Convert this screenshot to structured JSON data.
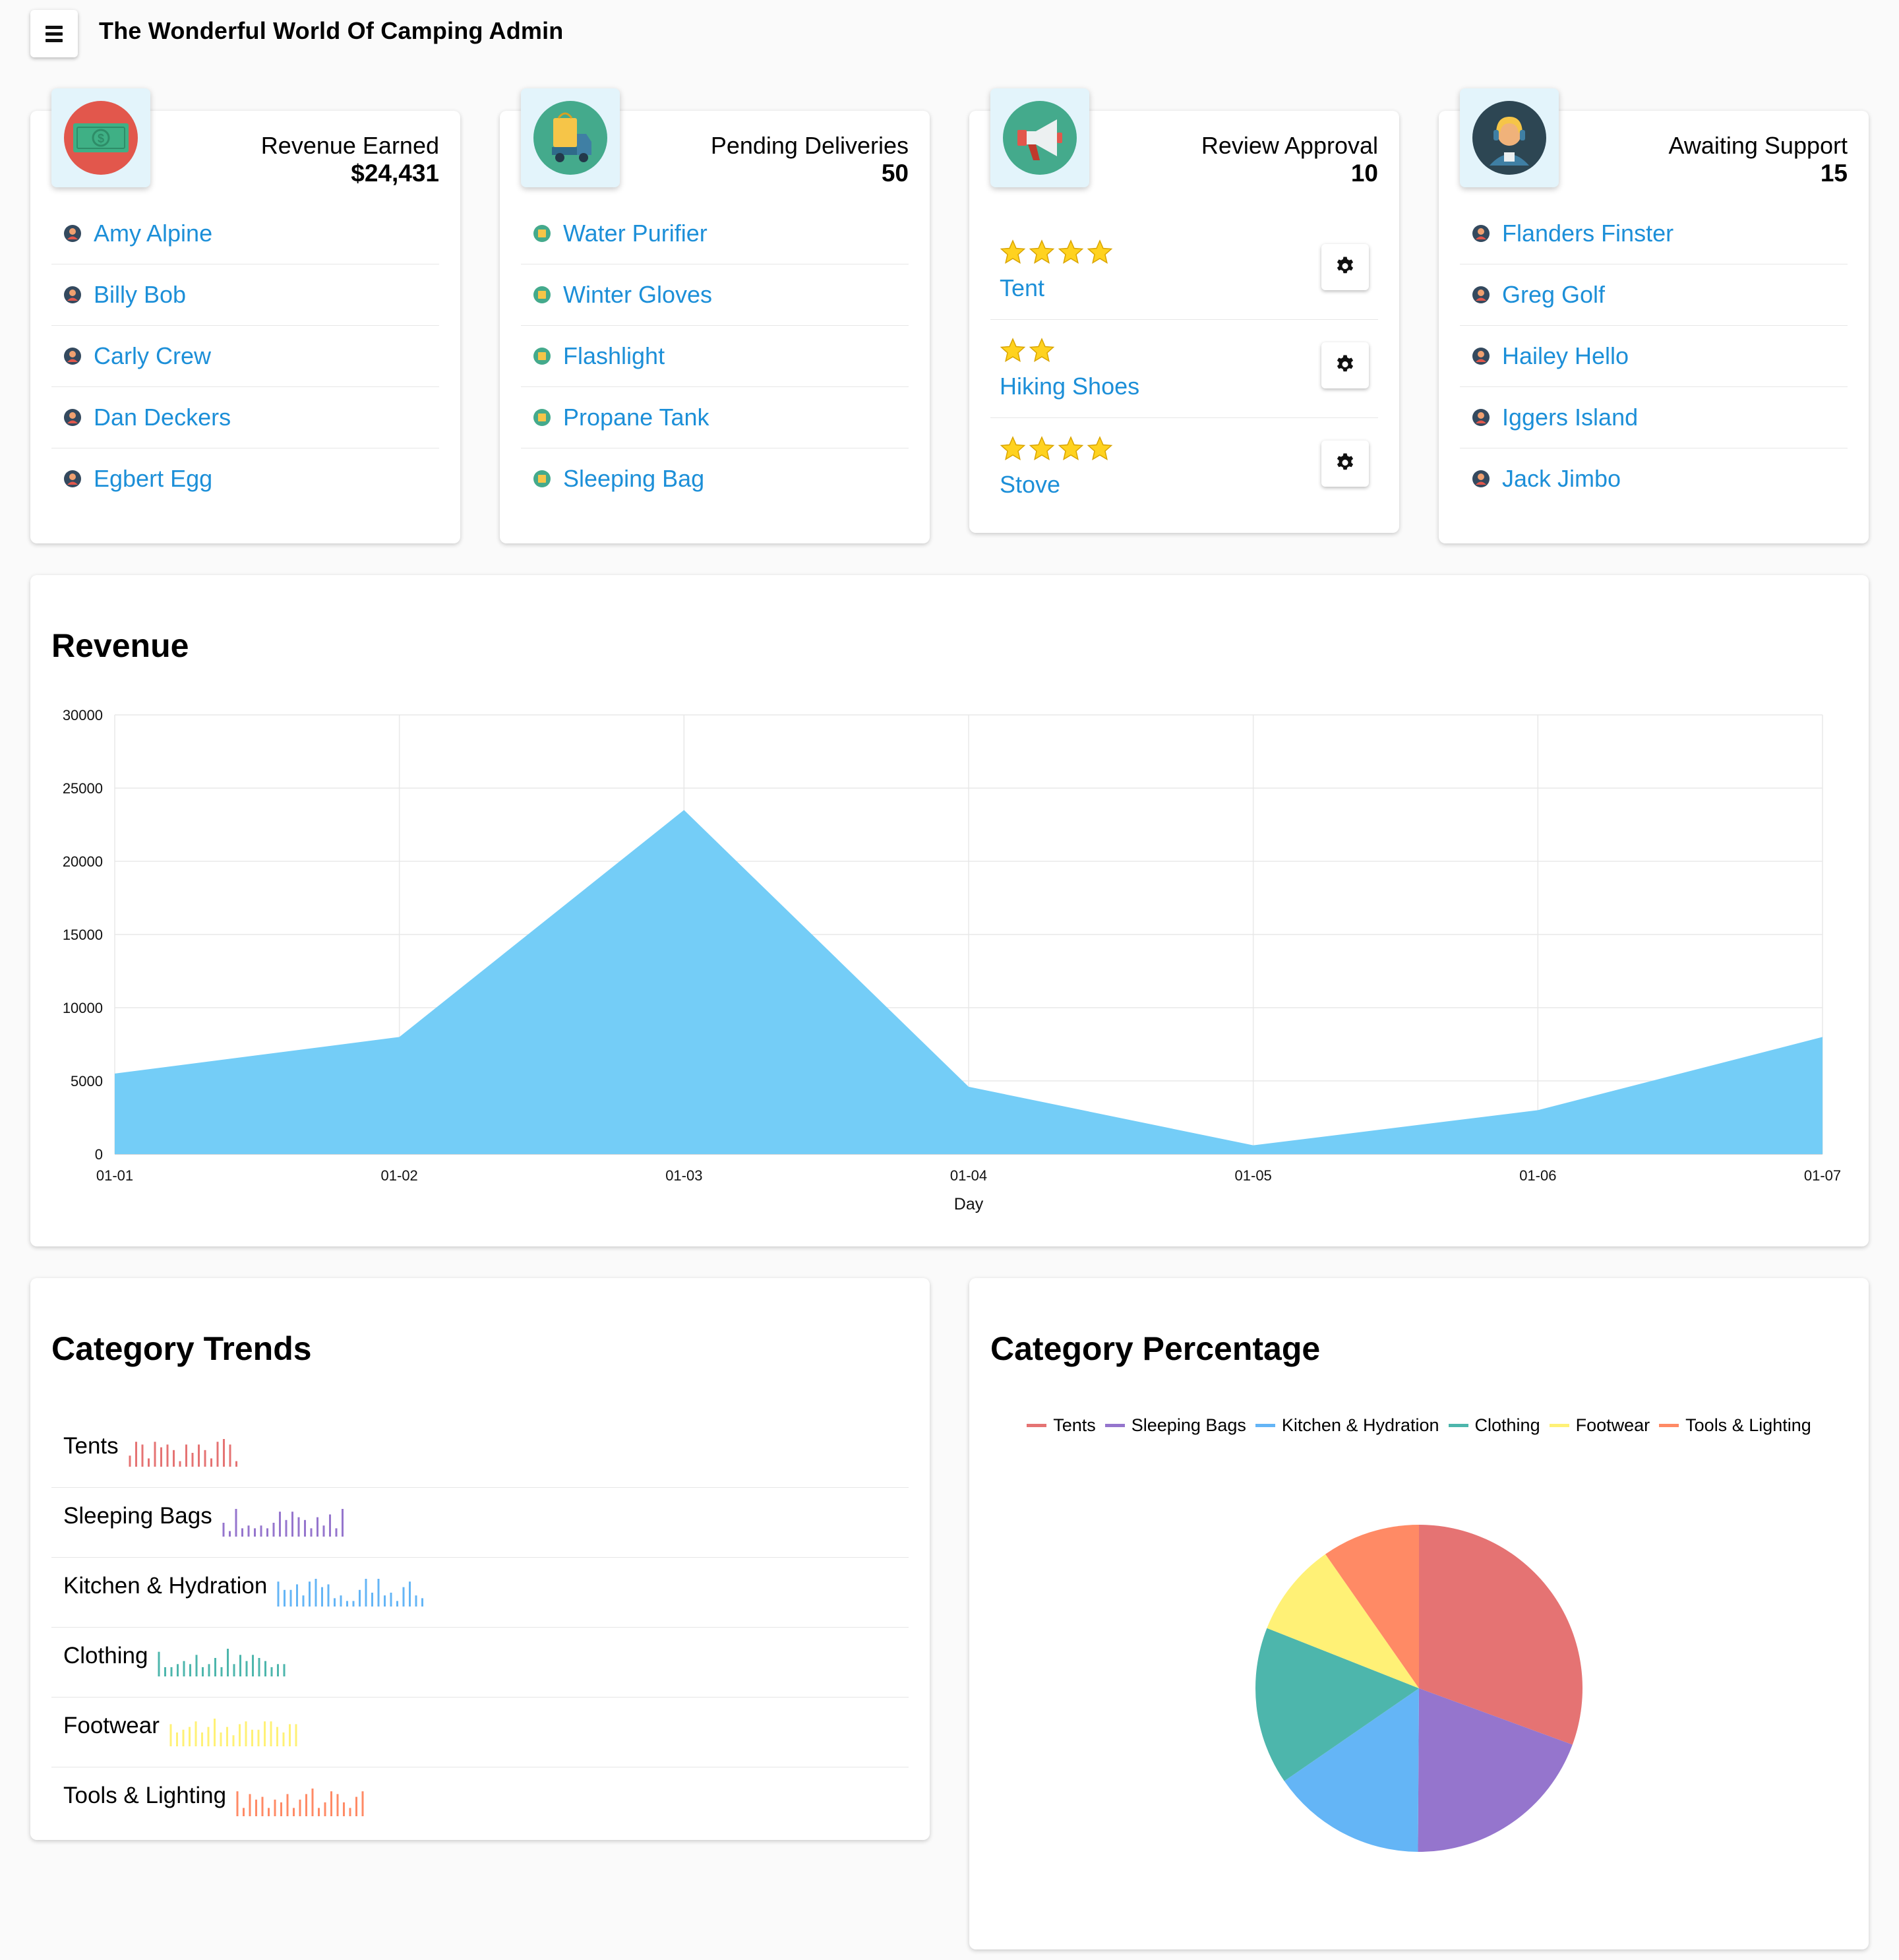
{
  "app": {
    "title": "The Wonderful World Of Camping Admin",
    "menu_icon": "hamburger-menu-icon"
  },
  "stats": [
    {
      "id": "revenue",
      "label": "Revenue Earned",
      "value": "$24,431",
      "icon": "money-icon",
      "icon_color": "#e2574c",
      "items": [
        "Amy Alpine",
        "Billy Bob",
        "Carly Crew",
        "Dan Deckers",
        "Egbert Egg"
      ]
    },
    {
      "id": "deliveries",
      "label": "Pending Deliveries",
      "value": "50",
      "icon": "delivery-truck-icon",
      "icon_color": "#44aa8c",
      "items": [
        "Water Purifier",
        "Winter Gloves",
        "Flashlight",
        "Propane Tank",
        "Sleeping Bag"
      ]
    },
    {
      "id": "reviews",
      "label": "Review Approval",
      "value": "10",
      "icon": "megaphone-icon",
      "icon_color": "#44aa8c",
      "reviews": [
        {
          "name": "Tent",
          "stars": 4
        },
        {
          "name": "Hiking Shoes",
          "stars": 2
        },
        {
          "name": "Stove",
          "stars": 4
        }
      ]
    },
    {
      "id": "support",
      "label": "Awaiting Support",
      "value": "15",
      "icon": "support-agent-icon",
      "icon_color": "#2d4653",
      "items": [
        "Flanders Finster",
        "Greg Golf",
        "Hailey Hello",
        "Iggers Island",
        "Jack Jimbo"
      ]
    }
  ],
  "revenue": {
    "title": "Revenue",
    "chart_data": {
      "type": "area",
      "x": [
        "01-01",
        "01-02",
        "01-03",
        "01-04",
        "01-05",
        "01-06",
        "01-07"
      ],
      "values": [
        5500,
        8000,
        23500,
        4600,
        600,
        3000,
        8000
      ],
      "xlabel": "Day",
      "ylabel": "",
      "ylim": [
        0,
        30000
      ],
      "yticks": [
        0,
        5000,
        10000,
        15000,
        20000,
        25000,
        30000
      ],
      "grid": true,
      "color": "#74cdf7"
    }
  },
  "trends": {
    "title": "Category Trends",
    "items": [
      {
        "name": "Tents",
        "color": "#e57373",
        "values": [
          4,
          9,
          8,
          3,
          9,
          7,
          8,
          6,
          2,
          8,
          5,
          8,
          6,
          3,
          9,
          10,
          8,
          2
        ]
      },
      {
        "name": "Sleeping Bags",
        "color": "#9575cd",
        "values": [
          5,
          2,
          10,
          3,
          4,
          3,
          4,
          3,
          5,
          9,
          6,
          9,
          7,
          6,
          3,
          7,
          4,
          8,
          3,
          10
        ]
      },
      {
        "name": "Kitchen & Hydration",
        "color": "#64b5f6",
        "values": [
          9,
          6,
          6,
          8,
          4,
          9,
          10,
          7,
          8,
          3,
          4,
          2,
          2,
          6,
          10,
          5,
          10,
          4,
          5,
          2,
          7,
          9,
          4,
          3
        ]
      },
      {
        "name": "Clothing",
        "color": "#4db6ac",
        "values": [
          8,
          3,
          3,
          4,
          5,
          4,
          7,
          3,
          4,
          6,
          3,
          9,
          4,
          7,
          5,
          7,
          6,
          5,
          3,
          4,
          4
        ]
      },
      {
        "name": "Footwear",
        "color": "#fff176",
        "values": [
          8,
          5,
          6,
          7,
          9,
          5,
          7,
          10,
          5,
          7,
          4,
          8,
          9,
          6,
          6,
          9,
          9,
          7,
          5,
          8,
          8
        ]
      },
      {
        "name": "Tools & Lighting",
        "color": "#ff8a65",
        "values": [
          9,
          3,
          8,
          6,
          7,
          3,
          6,
          5,
          8,
          3,
          6,
          8,
          10,
          3,
          5,
          9,
          8,
          5,
          3,
          7,
          9
        ]
      }
    ]
  },
  "percentage": {
    "title": "Category Percentage",
    "chart_data": {
      "type": "pie",
      "categories": [
        "Tents",
        "Sleeping Bags",
        "Kitchen & Hydration",
        "Clothing",
        "Footwear",
        "Tools & Lighting"
      ],
      "values": [
        30.6,
        19.5,
        15.3,
        15.6,
        9.3,
        9.7
      ],
      "colors": [
        "#e57373",
        "#9575cd",
        "#64b5f6",
        "#4db6ac",
        "#fff176",
        "#ff8a65"
      ],
      "legend": "top"
    }
  }
}
